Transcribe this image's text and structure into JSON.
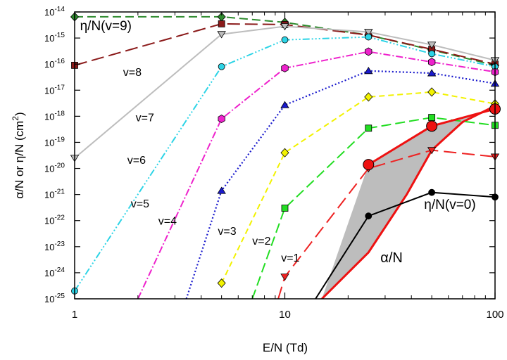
{
  "chart_data": {
    "type": "line",
    "x_scale": "log",
    "y_scale": "log",
    "xlim": [
      1,
      100
    ],
    "ylim": [
      1e-25,
      1e-14
    ],
    "x_ticks": [
      {
        "v": 1,
        "label": "1"
      },
      {
        "v": 10,
        "label": "10"
      },
      {
        "v": 100,
        "label": "100"
      }
    ],
    "y_ticks": [
      {
        "v": 1e-14,
        "base": "10",
        "exp": "-14"
      },
      {
        "v": 1e-15,
        "base": "10",
        "exp": "-15"
      },
      {
        "v": 1e-16,
        "base": "10",
        "exp": "-16"
      },
      {
        "v": 1e-17,
        "base": "10",
        "exp": "-17"
      },
      {
        "v": 1e-18,
        "base": "10",
        "exp": "-18"
      },
      {
        "v": 1e-19,
        "base": "10",
        "exp": "-19"
      },
      {
        "v": 1e-20,
        "base": "10",
        "exp": "-20"
      },
      {
        "v": 1e-21,
        "base": "10",
        "exp": "-21"
      },
      {
        "v": 1e-22,
        "base": "10",
        "exp": "-22"
      },
      {
        "v": 1e-23,
        "base": "10",
        "exp": "-23"
      },
      {
        "v": 1e-24,
        "base": "10",
        "exp": "-24"
      },
      {
        "v": 1e-25,
        "base": "10",
        "exp": "-25"
      }
    ],
    "xlabel": "E/N (Td)",
    "ylabel": {
      "main": "α/N or η/N (cm",
      "sup": "2",
      "end": ")"
    },
    "grid": false,
    "series": [
      {
        "name": "v=9",
        "color": "#2e8b2e",
        "dash": "12,6",
        "marker": "diamond",
        "x": [
          1,
          5,
          10,
          25,
          50,
          100
        ],
        "y": [
          6.5e-15,
          6.5e-15,
          4e-15,
          1.3e-15,
          3.5e-16,
          9e-17
        ]
      },
      {
        "name": "v=8",
        "color": "#8b1a1a",
        "dash": "18,7",
        "marker": "square",
        "x": [
          1,
          5,
          10,
          25,
          50,
          100
        ],
        "y": [
          9e-17,
          3.5e-15,
          3.3e-15,
          1.3e-15,
          3.7e-16,
          1e-16
        ]
      },
      {
        "name": "v=7",
        "color": "#bdbdbd",
        "dash": "none",
        "marker": "triangle-down",
        "x": [
          1,
          5,
          10,
          25,
          50,
          100
        ],
        "y": [
          2.5e-20,
          1.4e-15,
          2.8e-15,
          1.7e-15,
          5.5e-16,
          1.4e-16
        ]
      },
      {
        "name": "v=6",
        "color": "#2dd4e6",
        "dash": "10,3,2,3,2,3,2,3",
        "marker": "circle",
        "x": [
          1,
          5,
          10,
          25,
          50,
          100
        ],
        "y": [
          2e-25,
          8e-17,
          8.5e-16,
          1.1e-15,
          2.5e-16,
          8e-17
        ]
      },
      {
        "name": "v=5",
        "color": "#ee22cc",
        "dash": "10,3,2,3",
        "marker": "hexagon",
        "x": [
          2,
          5,
          10,
          25,
          50,
          100
        ],
        "y": [
          1e-25,
          8e-19,
          7e-17,
          3e-16,
          1.2e-16,
          5e-17
        ]
      },
      {
        "name": "v=4",
        "color": "#1a1acd",
        "dash": "2,3",
        "marker": "triangle-up",
        "x": [
          3.4,
          5,
          10,
          25,
          50,
          100
        ],
        "y": [
          1e-25,
          1.4e-21,
          2.7e-18,
          5.5e-17,
          4.5e-17,
          1.8e-17
        ]
      },
      {
        "name": "v=3",
        "color": "#f2f200",
        "dash": "8,5",
        "marker": "diamond",
        "x": [
          5,
          10,
          25,
          50,
          100
        ],
        "y": [
          4e-25,
          4e-20,
          5.5e-18,
          8.5e-18,
          3e-18
        ]
      },
      {
        "name": "v=2",
        "color": "#22dd22",
        "dash": "14,6",
        "marker": "square",
        "x": [
          7,
          10,
          25,
          50,
          100
        ],
        "y": [
          1e-25,
          3e-22,
          3.5e-19,
          9e-19,
          4.5e-19
        ]
      },
      {
        "name": "v=1",
        "color": "#ee2222",
        "dash": "18,8",
        "marker": "triangle-down",
        "x": [
          9.3,
          10,
          25,
          50,
          100
        ],
        "y": [
          1e-25,
          7e-25,
          1e-20,
          5e-20,
          2.8e-20
        ]
      },
      {
        "name": "η/N(v=0)",
        "color": "#000000",
        "dash": "none",
        "marker": "circle",
        "x": [
          14,
          25,
          50,
          100
        ],
        "y": [
          1e-25,
          1.5e-22,
          1.2e-21,
          8e-22
        ]
      },
      {
        "name": "α/N",
        "color": "#ee1111",
        "dash": "none",
        "marker": "circle-large",
        "x": [
          25,
          50,
          100
        ],
        "y": [
          1.4e-20,
          4.2e-19,
          1.9e-18
        ]
      }
    ],
    "alpha_band": {
      "upper": {
        "x": [
          25,
          50,
          100
        ],
        "y": [
          1.4e-20,
          4.2e-19,
          1.9e-18
        ]
      },
      "lower": {
        "x": [
          15,
          25,
          38,
          50,
          70,
          100
        ],
        "y": [
          1e-25,
          6e-24,
          1e-21,
          5e-20,
          6e-19,
          2.5e-18
        ]
      }
    },
    "annotations": [
      {
        "text": "η/N(v=9)",
        "x": 1.06,
        "y": 2e-15,
        "size": 19
      },
      {
        "text": "v=8",
        "x": 1.7,
        "y": 3.5e-17,
        "size": 16
      },
      {
        "text": "v=7",
        "x": 1.95,
        "y": 6.5e-19,
        "size": 16
      },
      {
        "text": "v=6",
        "x": 1.78,
        "y": 1.5e-20,
        "size": 16
      },
      {
        "text": "v=5",
        "x": 1.85,
        "y": 3.2e-22,
        "size": 16
      },
      {
        "text": "v=4",
        "x": 2.5,
        "y": 7e-23,
        "size": 16
      },
      {
        "text": "v=3",
        "x": 4.8,
        "y": 2.8e-23,
        "size": 16
      },
      {
        "text": "v=2",
        "x": 7.0,
        "y": 1.2e-23,
        "size": 16
      },
      {
        "text": "v=1",
        "x": 9.6,
        "y": 2.7e-24,
        "size": 16
      },
      {
        "text": "η/N(v=0)",
        "x": 46,
        "y": 2.8e-22,
        "size": 19
      },
      {
        "text": "α/N",
        "x": 28.5,
        "y": 2.5e-24,
        "size": 20
      }
    ]
  }
}
